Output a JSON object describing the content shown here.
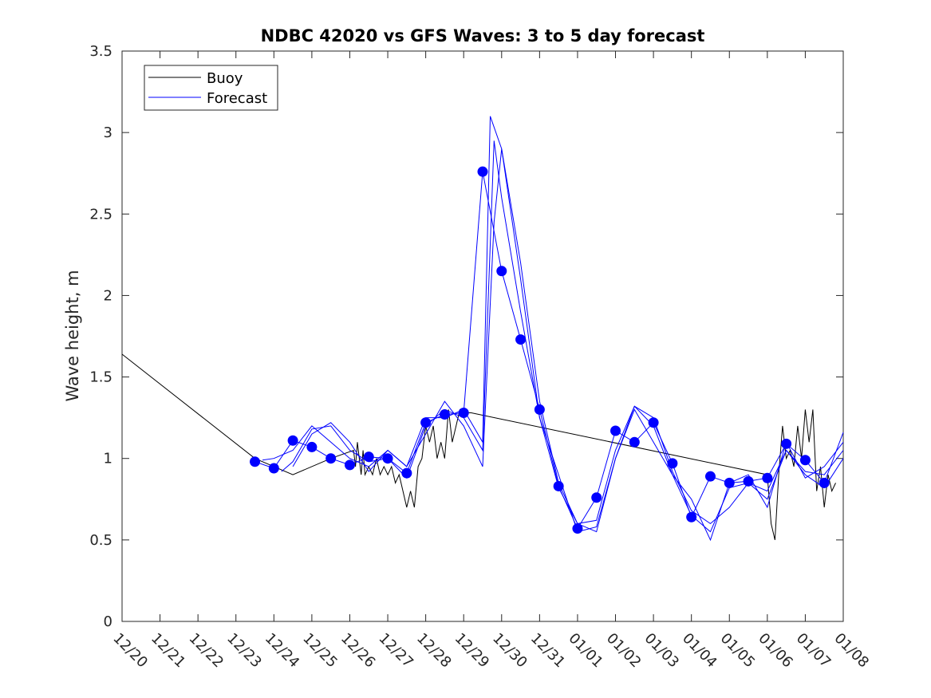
{
  "chart_data": {
    "type": "line",
    "title": "NDBC 42020 vs GFS Waves: 3 to 5 day forecast",
    "xlabel": "",
    "ylabel": "Wave height, m",
    "xlim": [
      0,
      19
    ],
    "ylim": [
      0,
      3.5
    ],
    "x_ticks": [
      {
        "x": 0,
        "label": "12/20"
      },
      {
        "x": 1,
        "label": "12/21"
      },
      {
        "x": 2,
        "label": "12/22"
      },
      {
        "x": 3,
        "label": "12/23"
      },
      {
        "x": 4,
        "label": "12/24"
      },
      {
        "x": 5,
        "label": "12/25"
      },
      {
        "x": 6,
        "label": "12/26"
      },
      {
        "x": 7,
        "label": "12/27"
      },
      {
        "x": 8,
        "label": "12/28"
      },
      {
        "x": 9,
        "label": "12/29"
      },
      {
        "x": 10,
        "label": "12/30"
      },
      {
        "x": 11,
        "label": "12/31"
      },
      {
        "x": 12,
        "label": "01/01"
      },
      {
        "x": 13,
        "label": "01/02"
      },
      {
        "x": 14,
        "label": "01/03"
      },
      {
        "x": 15,
        "label": "01/04"
      },
      {
        "x": 16,
        "label": "01/05"
      },
      {
        "x": 17,
        "label": "01/06"
      },
      {
        "x": 18,
        "label": "01/07"
      },
      {
        "x": 19,
        "label": "01/08"
      }
    ],
    "y_ticks": [
      {
        "y": 0,
        "label": "0"
      },
      {
        "y": 0.5,
        "label": "0.5"
      },
      {
        "y": 1,
        "label": "1"
      },
      {
        "y": 1.5,
        "label": "1.5"
      },
      {
        "y": 2,
        "label": "2"
      },
      {
        "y": 2.5,
        "label": "2.5"
      },
      {
        "y": 3,
        "label": "3"
      },
      {
        "y": 3.5,
        "label": "3.5"
      }
    ],
    "legend": {
      "position": "top-left",
      "entries": [
        {
          "name": "Buoy",
          "color": "#000000"
        },
        {
          "name": "Forecast",
          "color": "#0000ff"
        }
      ]
    },
    "series": [
      {
        "name": "Buoy",
        "color": "#000000",
        "x": [
          0,
          3.5,
          4.5,
          5.5,
          6.1,
          6.15,
          6.2,
          6.3,
          6.35,
          6.4,
          6.5,
          6.6,
          6.7,
          6.8,
          6.9,
          7.0,
          7.1,
          7.2,
          7.3,
          7.4,
          7.5,
          7.6,
          7.7,
          7.8,
          7.9,
          8.0,
          8.1,
          8.2,
          8.3,
          8.4,
          8.5,
          8.6,
          8.7,
          8.8,
          8.9,
          9.0,
          9.1,
          9.2,
          17.0,
          17.1,
          17.2,
          17.3,
          17.4,
          17.5,
          17.6,
          17.7,
          17.8,
          17.9,
          18.0,
          18.1,
          18.2,
          18.3,
          18.4,
          18.5,
          18.6,
          18.7,
          18.8
        ],
        "y": [
          1.64,
          1.0,
          0.9,
          1.0,
          1.05,
          0.95,
          1.1,
          0.9,
          1.05,
          0.9,
          0.95,
          0.9,
          1.0,
          0.9,
          0.95,
          0.9,
          0.95,
          0.85,
          0.9,
          0.8,
          0.7,
          0.8,
          0.7,
          0.95,
          1.0,
          1.2,
          1.1,
          1.2,
          1.0,
          1.1,
          1.0,
          1.3,
          1.1,
          1.2,
          1.3,
          1.3,
          1.28,
          1.28,
          0.9,
          0.6,
          0.5,
          0.9,
          1.2,
          1.0,
          1.05,
          0.95,
          1.2,
          1.0,
          1.3,
          1.1,
          1.3,
          0.8,
          0.95,
          0.7,
          0.9,
          0.8,
          0.85
        ]
      },
      {
        "name": "Forecast 1",
        "color": "#0000ff",
        "x": [
          3.5,
          4.0,
          4.5,
          5.0,
          5.5,
          6.0,
          6.5,
          7.0,
          7.5,
          8.0,
          8.5,
          9.0,
          9.5,
          10.0,
          10.5,
          11.0,
          11.5,
          12.0,
          12.5,
          13.0,
          13.5,
          14.0,
          14.5,
          15.0,
          15.5,
          16.0,
          16.5,
          17.0,
          17.5,
          18.0,
          18.5,
          19.0
        ],
        "y": [
          0.98,
          0.94,
          1.11,
          1.07,
          1.0,
          0.96,
          1.01,
          1.0,
          0.91,
          1.22,
          1.27,
          1.28,
          2.76,
          2.15,
          1.73,
          1.3,
          0.83,
          0.57,
          0.76,
          1.17,
          1.1,
          1.22,
          0.97,
          0.64,
          0.89,
          0.85,
          0.86,
          0.88,
          1.09,
          0.99,
          0.85,
          1.16
        ]
      },
      {
        "name": "Forecast 2",
        "color": "#0000ff",
        "x": [
          3.7,
          4.0,
          4.5,
          5.0,
          5.5,
          6.0,
          6.5,
          7.0,
          7.5,
          8.0,
          8.5,
          9.0,
          9.5,
          9.7,
          10.0,
          10.5,
          11.0,
          11.5,
          12.0,
          12.5,
          13.0,
          13.5,
          14.0,
          14.5,
          15.0,
          15.5,
          16.0,
          16.5,
          17.0,
          17.5,
          18.0,
          18.5,
          19.0
        ],
        "y": [
          0.99,
          1.0,
          1.05,
          1.2,
          1.1,
          1.0,
          0.95,
          1.05,
          0.95,
          1.25,
          1.25,
          1.3,
          1.1,
          3.1,
          2.9,
          2.2,
          1.35,
          0.85,
          0.6,
          0.55,
          1.0,
          1.3,
          1.1,
          0.9,
          0.65,
          0.55,
          0.82,
          0.85,
          0.8,
          1.05,
          0.9,
          0.82,
          1.0
        ]
      },
      {
        "name": "Forecast 3",
        "color": "#0000ff",
        "x": [
          4.2,
          4.5,
          5.0,
          5.5,
          6.0,
          6.5,
          7.0,
          7.5,
          8.0,
          8.5,
          9.0,
          9.5,
          9.8,
          10.0,
          10.5,
          11.0,
          11.5,
          12.0,
          12.5,
          13.0,
          13.5,
          14.0,
          14.5,
          15.0,
          15.5,
          16.0,
          16.5,
          17.0,
          17.5,
          18.0,
          18.5,
          19.0
        ],
        "y": [
          0.92,
          0.98,
          1.18,
          1.2,
          1.05,
          0.98,
          1.0,
          0.88,
          1.2,
          1.3,
          1.25,
          1.05,
          2.95,
          2.6,
          1.9,
          1.25,
          0.82,
          0.6,
          0.62,
          1.05,
          1.32,
          1.2,
          0.9,
          0.75,
          0.5,
          0.85,
          0.9,
          0.7,
          1.1,
          0.88,
          0.95,
          1.1
        ]
      },
      {
        "name": "Forecast 4",
        "color": "#0000ff",
        "x": [
          4.5,
          5.0,
          5.5,
          6.0,
          6.5,
          7.0,
          7.5,
          8.0,
          8.5,
          9.0,
          9.5,
          9.8,
          10.0,
          10.5,
          11.0,
          11.5,
          12.0,
          12.5,
          13.0,
          13.5,
          14.0,
          14.5,
          15.0,
          15.5,
          16.0,
          16.5,
          17.0,
          17.5,
          18.0,
          18.5,
          19.0
        ],
        "y": [
          0.95,
          1.15,
          1.22,
          1.1,
          0.92,
          1.05,
          0.95,
          1.15,
          1.35,
          1.2,
          0.95,
          2.45,
          2.9,
          2.1,
          1.25,
          0.9,
          0.55,
          0.58,
          1.0,
          1.32,
          1.25,
          0.92,
          0.68,
          0.6,
          0.7,
          0.85,
          0.75,
          1.05,
          0.92,
          0.9,
          1.05
        ]
      }
    ],
    "markers": {
      "name": "Forecast points",
      "color": "#0000ff",
      "x": [
        3.5,
        4.0,
        4.5,
        5.0,
        5.5,
        6.0,
        6.5,
        7.0,
        7.5,
        8.0,
        8.5,
        9.0,
        9.5,
        10.0,
        10.5,
        11.0,
        11.5,
        12.0,
        12.5,
        13.0,
        13.5,
        14.0,
        14.5,
        15.0,
        15.5,
        16.0,
        16.5,
        17.0,
        17.5,
        18.0,
        18.5
      ],
      "y": [
        0.98,
        0.94,
        1.11,
        1.07,
        1.0,
        0.96,
        1.01,
        1.0,
        0.91,
        1.22,
        1.27,
        1.28,
        2.76,
        2.15,
        1.73,
        1.3,
        0.83,
        0.57,
        0.76,
        1.17,
        1.1,
        1.22,
        0.97,
        0.64,
        0.89,
        0.85,
        0.86,
        0.88,
        1.09,
        0.99,
        0.85
      ]
    }
  }
}
